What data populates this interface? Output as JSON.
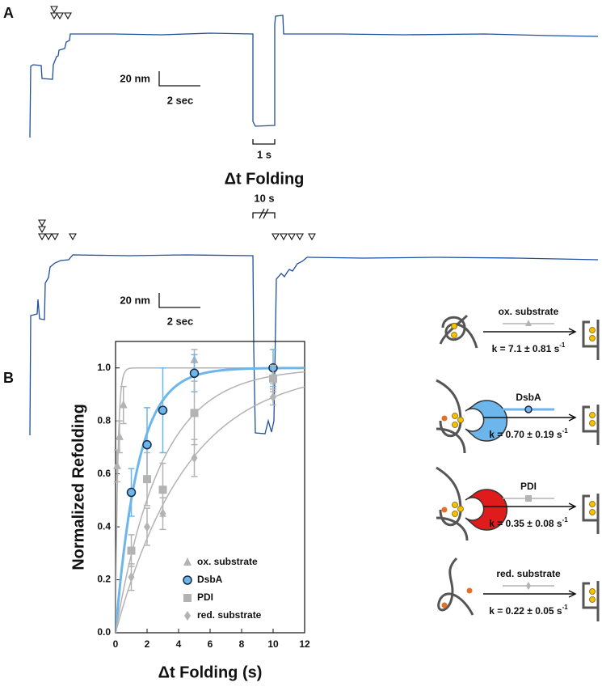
{
  "panel_a": {
    "label": "A",
    "trace1": {
      "scale_y": "20 nm",
      "scale_x": "2 sec",
      "interval": "1 s"
    },
    "delta_label": "Δt Folding",
    "interval2": "10 s",
    "trace2": {
      "scale_y": "20 nm",
      "scale_x": "2 sec"
    }
  },
  "chart_data": {
    "type": "scatter",
    "panel_label": "B",
    "x_label": "Δt Folding (s)",
    "y_label": "Normalized Refolding",
    "xlim": [
      0,
      12
    ],
    "xticks": [
      0,
      2,
      4,
      6,
      8,
      10,
      12
    ],
    "ylim": [
      0,
      1.1
    ],
    "yticks": [
      {
        "value": 0,
        "label": "0.0"
      },
      0.2,
      0.4,
      0.6,
      0.8,
      {
        "value": 1,
        "label": "1.0"
      }
    ],
    "legend": "lower right",
    "series": [
      {
        "name": "ox. substrate",
        "color": "#b3b3b3",
        "marker": "triangle",
        "k": 7.1,
        "x": [
          0.1,
          0.25,
          0.5,
          5,
          10
        ],
        "values": [
          0.63,
          0.74,
          0.86,
          1.03,
          0.97
        ],
        "errors": [
          0.06,
          0.06,
          0.07,
          0.04,
          0.03
        ]
      },
      {
        "name": "DsbA",
        "color": "#6cb6ec",
        "marker": "circle",
        "k": 0.7,
        "x": [
          1,
          2,
          3,
          5,
          10
        ],
        "values": [
          0.53,
          0.71,
          0.84,
          0.98,
          1.0
        ],
        "errors": [
          0.09,
          0.14,
          0.16,
          0.07,
          0.07
        ]
      },
      {
        "name": "PDI",
        "color": "#b3b3b3",
        "marker": "square",
        "k": 0.35,
        "x": [
          1,
          2,
          3,
          5,
          10
        ],
        "values": [
          0.31,
          0.58,
          0.54,
          0.83,
          0.96
        ],
        "errors": [
          0.06,
          0.1,
          0.1,
          0.12,
          0.05
        ]
      },
      {
        "name": "red. substrate",
        "color": "#b3b3b3",
        "marker": "diamond",
        "k": 0.22,
        "x": [
          1,
          2,
          3,
          5,
          10
        ],
        "values": [
          0.21,
          0.4,
          0.45,
          0.66,
          0.89
        ],
        "errors": [
          0.05,
          0.07,
          0.06,
          0.07,
          0.03
        ]
      }
    ]
  },
  "schemes": [
    {
      "label": "ox. substrate",
      "rate": "k = 7.1 ± 0.81 s",
      "rate_exponent": "-1"
    },
    {
      "label": "DsbA",
      "rate": "k = 0.70 ± 0.19 s",
      "rate_exponent": "-1"
    },
    {
      "label": "PDI",
      "rate": "k = 0.35 ± 0.08 s",
      "rate_exponent": "-1"
    },
    {
      "label": "red. substrate",
      "rate": "k = 0.22 ± 0.05 s",
      "rate_exponent": "-1"
    }
  ]
}
